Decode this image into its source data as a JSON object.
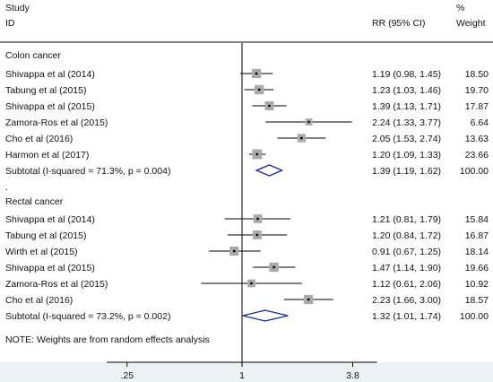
{
  "chart_data": {
    "type": "forest",
    "header": {
      "study_line1": "Study",
      "study_line2": "ID",
      "effect_label": "RR (95% CI)",
      "weight_line1": "%",
      "weight_line2": "Weight"
    },
    "x_axis": {
      "scale": "log",
      "ticks": [
        0.25,
        1,
        3.8
      ],
      "tick_labels": [
        ".25",
        "1",
        "3.8"
      ],
      "range": [
        0.196,
        5.1
      ]
    },
    "colors": {
      "plot_bg": "#ffffff",
      "axis_band": "#eaf2f3",
      "marker": "#aaaaaa",
      "diamond": "#1a2a8c",
      "line": "#000000"
    },
    "groups": [
      {
        "name": "Colon cancer",
        "studies": [
          {
            "label": "Shivappa et al (2014)",
            "rr": 1.19,
            "lo": 0.98,
            "hi": 1.45,
            "ci_text": "1.19 (0.98, 1.45)",
            "weight": 18.5,
            "weight_text": "18.50"
          },
          {
            "label": "Tabung  et al (2015)",
            "rr": 1.23,
            "lo": 1.03,
            "hi": 1.46,
            "ci_text": "1.23 (1.03, 1.46)",
            "weight": 19.7,
            "weight_text": "19.70"
          },
          {
            "label": "Shivappa et al (2015)",
            "rr": 1.39,
            "lo": 1.13,
            "hi": 1.71,
            "ci_text": "1.39 (1.13, 1.71)",
            "weight": 17.87,
            "weight_text": "17.87"
          },
          {
            "label": "Zamora-Ros et al (2015)",
            "rr": 2.24,
            "lo": 1.33,
            "hi": 3.77,
            "ci_text": "2.24 (1.33, 3.77)",
            "weight": 6.64,
            "weight_text": "6.64"
          },
          {
            "label": "Cho et al (2016)",
            "rr": 2.05,
            "lo": 1.53,
            "hi": 2.74,
            "ci_text": "2.05 (1.53, 2.74)",
            "weight": 13.63,
            "weight_text": "13.63"
          },
          {
            "label": "Harmon et al (2017)",
            "rr": 1.2,
            "lo": 1.09,
            "hi": 1.33,
            "ci_text": "1.20 (1.09, 1.33)",
            "weight": 23.66,
            "weight_text": "23.66"
          }
        ],
        "subtotal": {
          "label": "Subtotal  (I-squared = 71.3%, p = 0.004)",
          "rr": 1.39,
          "lo": 1.19,
          "hi": 1.62,
          "ci_text": "1.39 (1.19, 1.62)",
          "weight_text": "100.00"
        }
      },
      {
        "name": "Rectal cancer",
        "studies": [
          {
            "label": "Shivappa et al (2014)",
            "rr": 1.21,
            "lo": 0.81,
            "hi": 1.79,
            "ci_text": "1.21 (0.81, 1.79)",
            "weight": 15.84,
            "weight_text": "15.84"
          },
          {
            "label": "Tabung  et al (2015)",
            "rr": 1.2,
            "lo": 0.84,
            "hi": 1.72,
            "ci_text": "1.20 (0.84, 1.72)",
            "weight": 16.87,
            "weight_text": "16.87"
          },
          {
            "label": "Wirth et al (2015)",
            "rr": 0.91,
            "lo": 0.67,
            "hi": 1.25,
            "ci_text": "0.91 (0.67, 1.25)",
            "weight": 18.14,
            "weight_text": "18.14"
          },
          {
            "label": "Shivappa et al (2015)",
            "rr": 1.47,
            "lo": 1.14,
            "hi": 1.9,
            "ci_text": "1.47 (1.14, 1.90)",
            "weight": 19.66,
            "weight_text": "19.66"
          },
          {
            "label": "Zamora-Ros et al (2015)",
            "rr": 1.12,
            "lo": 0.61,
            "hi": 2.06,
            "ci_text": "1.12 (0.61, 2.06)",
            "weight": 10.92,
            "weight_text": "10.92"
          },
          {
            "label": "Cho et al (2016)",
            "rr": 2.23,
            "lo": 1.66,
            "hi": 3.0,
            "ci_text": "2.23 (1.66, 3.00)",
            "weight": 18.57,
            "weight_text": "18.57"
          }
        ],
        "subtotal": {
          "label": "Subtotal  (I-squared = 73.2%, p = 0.002)",
          "rr": 1.32,
          "lo": 1.01,
          "hi": 1.74,
          "ci_text": "1.32 (1.01, 1.74)",
          "weight_text": "100.00"
        }
      }
    ],
    "separator": ".",
    "note": "NOTE: Weights are from random effects analysis"
  }
}
